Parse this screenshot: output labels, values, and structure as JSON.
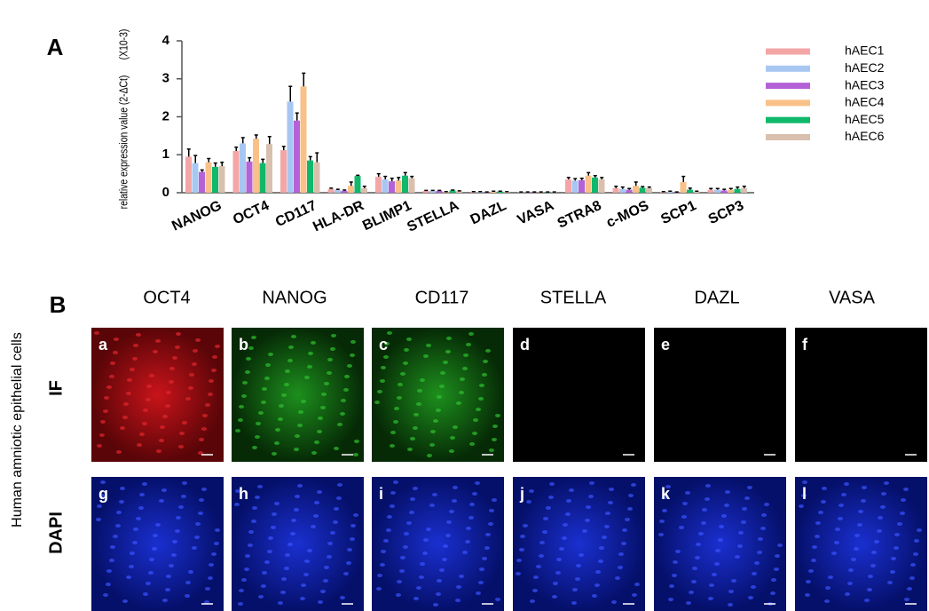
{
  "panel_a": {
    "label": "A"
  },
  "chart_data": {
    "type": "bar",
    "ylabel": "relative expression value (2-ΔCt)",
    "ylabel_unit": "(X10-3)",
    "categories": [
      "NANOG",
      "OCT4",
      "CD117",
      "HLA-DR",
      "BLIMP1",
      "STELLA",
      "DAZL",
      "VASA",
      "STRA8",
      "c-MOS",
      "SCP1",
      "SCP3"
    ],
    "series": [
      {
        "name": "hAEC1",
        "color": "#f4a6a6",
        "values": [
          0.95,
          1.1,
          1.12,
          0.1,
          0.42,
          0.05,
          0.02,
          0.01,
          0.35,
          0.12,
          0.02,
          0.08
        ],
        "errors": [
          0.2,
          0.1,
          0.1,
          0.02,
          0.08,
          0.01,
          0.01,
          0.01,
          0.05,
          0.05,
          0.01,
          0.03
        ]
      },
      {
        "name": "hAEC2",
        "color": "#a7c7f2",
        "values": [
          0.78,
          1.3,
          2.4,
          0.07,
          0.35,
          0.05,
          0.02,
          0.01,
          0.32,
          0.1,
          0.03,
          0.08
        ],
        "errors": [
          0.2,
          0.15,
          0.4,
          0.02,
          0.08,
          0.01,
          0.01,
          0.01,
          0.05,
          0.05,
          0.01,
          0.03
        ]
      },
      {
        "name": "hAEC3",
        "color": "#b462d8",
        "values": [
          0.55,
          0.82,
          1.9,
          0.05,
          0.3,
          0.05,
          0.01,
          0.01,
          0.33,
          0.08,
          0.01,
          0.06
        ],
        "errors": [
          0.05,
          0.1,
          0.2,
          0.02,
          0.08,
          0.01,
          0.01,
          0.01,
          0.05,
          0.03,
          0.01,
          0.03
        ]
      },
      {
        "name": "hAEC4",
        "color": "#f9c089",
        "values": [
          0.8,
          1.42,
          2.8,
          0.18,
          0.32,
          0.02,
          0.03,
          0.01,
          0.45,
          0.18,
          0.28,
          0.08
        ],
        "errors": [
          0.1,
          0.1,
          0.35,
          0.1,
          0.08,
          0.01,
          0.01,
          0.01,
          0.08,
          0.1,
          0.15,
          0.03
        ]
      },
      {
        "name": "hAEC5",
        "color": "#10b86b",
        "values": [
          0.68,
          0.78,
          0.85,
          0.44,
          0.45,
          0.06,
          0.03,
          0.01,
          0.4,
          0.13,
          0.08,
          0.1
        ],
        "errors": [
          0.1,
          0.1,
          0.1,
          0.02,
          0.08,
          0.01,
          0.01,
          0.01,
          0.05,
          0.03,
          0.04,
          0.05
        ]
      },
      {
        "name": "hAEC6",
        "color": "#d9c0ae",
        "values": [
          0.7,
          1.28,
          0.8,
          0.12,
          0.38,
          0.04,
          0.02,
          0.01,
          0.35,
          0.12,
          0.03,
          0.12
        ],
        "errors": [
          0.1,
          0.2,
          0.25,
          0.05,
          0.05,
          0.01,
          0.01,
          0.01,
          0.05,
          0.03,
          0.01,
          0.05
        ]
      }
    ],
    "ylim": [
      0,
      4
    ],
    "yticks": [
      0,
      1,
      2,
      3,
      4
    ],
    "legend": "right"
  },
  "panel_b": {
    "label": "B",
    "side_label": "Human amniotic epithelial cells",
    "columns": [
      "OCT4",
      "NANOG",
      "CD117",
      "STELLA",
      "DAZL",
      "VASA"
    ],
    "rows": [
      "IF",
      "DAPI"
    ],
    "letters": [
      [
        "a",
        "b",
        "c",
        "d",
        "e",
        "f"
      ],
      [
        "g",
        "h",
        "i",
        "j",
        "k",
        "l"
      ]
    ]
  }
}
